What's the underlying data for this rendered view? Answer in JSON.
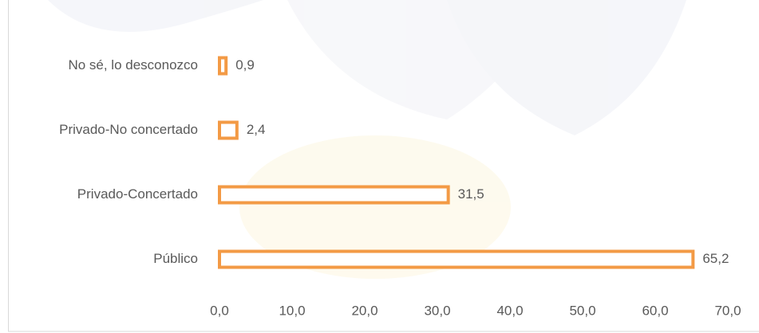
{
  "chart_data": {
    "type": "bar",
    "orientation": "horizontal",
    "categories": [
      "No sé, lo desconozco",
      "Privado-No concertado",
      "Privado-Concertado",
      "Público"
    ],
    "values": [
      0.9,
      2.4,
      31.5,
      65.2
    ],
    "value_labels": [
      "0,9",
      "2,4",
      "31,5",
      "65,2"
    ],
    "color": "#f39a45",
    "xlim": [
      0,
      70
    ],
    "xticks": [
      {
        "value": 0,
        "label": "0,0"
      },
      {
        "value": 10,
        "label": "10,0"
      },
      {
        "value": 20,
        "label": "20,0"
      },
      {
        "value": 30,
        "label": "30,0"
      },
      {
        "value": 40,
        "label": "40,0"
      },
      {
        "value": 50,
        "label": "50,0"
      },
      {
        "value": 60,
        "label": "60,0"
      },
      {
        "value": 70,
        "label": "70,0"
      }
    ],
    "grid": false
  }
}
